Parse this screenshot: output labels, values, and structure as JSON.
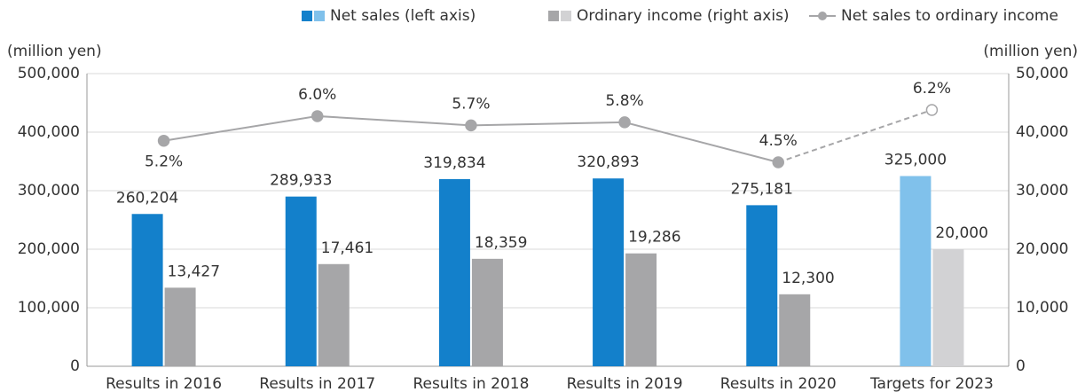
{
  "chart_data": {
    "type": "combo",
    "categories": [
      "Results in 2016",
      "Results in 2017",
      "Results in 2018",
      "Results in 2019",
      "Results in 2020",
      "Targets for 2023"
    ],
    "y_label": "(million yen)",
    "y2_label": "(million yen)",
    "ylim": [
      0,
      500000
    ],
    "yticks": [
      0,
      {
        "value": 100000,
        "label": "100,000"
      },
      {
        "value": 200000,
        "label": "200,000"
      },
      {
        "value": 300000,
        "label": "300,000"
      },
      {
        "value": 400000,
        "label": "400,000"
      },
      {
        "value": 500000,
        "label": "500,000"
      }
    ],
    "y2lim": [
      0,
      50000
    ],
    "y2ticks": [
      0,
      {
        "value": 10000,
        "label": "10,000"
      },
      {
        "value": 20000,
        "label": "20,000"
      },
      {
        "value": 30000,
        "label": "30,000"
      },
      {
        "value": 40000,
        "label": "40,000"
      },
      {
        "value": 50000,
        "label": "50,000"
      }
    ],
    "grid": true,
    "legend": "top",
    "series": [
      {
        "name": "Net sales (left axis)",
        "type": "bar",
        "axis": "y",
        "colors": [
          "#1380cb",
          "#1380cb",
          "#1380cb",
          "#1380cb",
          "#1380cb",
          "#80c1eb"
        ],
        "values": [
          260204,
          289933,
          319834,
          320893,
          275181,
          325000
        ],
        "value_labels": [
          "260,204",
          "289,933",
          "319,834",
          "320,893",
          "275,181",
          "325,000"
        ]
      },
      {
        "name": "Ordinary income (right axis)",
        "type": "bar",
        "axis": "y2",
        "colors": [
          "#a6a6a8",
          "#a6a6a8",
          "#a6a6a8",
          "#a6a6a8",
          "#a6a6a8",
          "#d2d2d4"
        ],
        "values": [
          13427,
          17461,
          18359,
          19286,
          12300,
          20000
        ],
        "value_labels": [
          "13,427",
          "17,461",
          "18,359",
          "19,286",
          "12,300",
          "20,000"
        ]
      },
      {
        "name": "Net sales to ordinary income",
        "type": "line",
        "color": "#a6a6a8",
        "values": [
          5.2,
          6.0,
          5.7,
          5.8,
          4.5,
          6.2
        ],
        "value_labels": [
          "5.2%",
          "6.0%",
          "5.7%",
          "5.8%",
          "4.5%",
          "6.2%"
        ]
      }
    ]
  }
}
